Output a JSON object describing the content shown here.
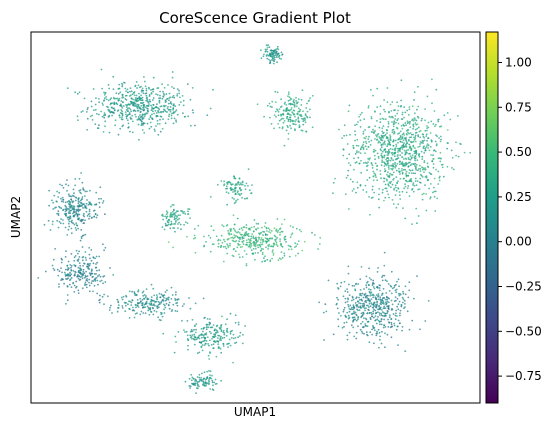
{
  "chart_data": {
    "type": "scatter",
    "title": "CoreScence Gradient Plot",
    "xlabel": "UMAP1",
    "ylabel": "UMAP2",
    "x_ticks": [],
    "y_ticks": [],
    "colorbar": {
      "colormap": "viridis",
      "range": [
        -0.9,
        1.17
      ],
      "ticks": [
        -0.75,
        -0.5,
        -0.25,
        0.0,
        0.25,
        0.5,
        0.75,
        1.0
      ],
      "tick_labels": [
        "−0.75",
        "−0.50",
        "−0.25",
        "0.00",
        "0.25",
        "0.50",
        "0.75",
        "1.00"
      ],
      "colors": [
        "#440154",
        "#482878",
        "#3e4989",
        "#31688e",
        "#26828e",
        "#1f9e89",
        "#35b779",
        "#6ece58",
        "#b5de2b",
        "#fde725"
      ]
    },
    "clusters": [
      {
        "name": "upper-left",
        "x": 0.24,
        "y": 0.8,
        "spread": [
          0.1,
          0.06
        ],
        "value": 0.22
      },
      {
        "name": "top-small",
        "x": 0.54,
        "y": 0.94,
        "spread": [
          0.02,
          0.02
        ],
        "value": 0.2
      },
      {
        "name": "right-large",
        "x": 0.82,
        "y": 0.68,
        "spread": [
          0.1,
          0.12
        ],
        "value": 0.35
      },
      {
        "name": "left-mid",
        "x": 0.1,
        "y": 0.52,
        "spread": [
          0.05,
          0.06
        ],
        "value": 0.05
      },
      {
        "name": "left-lower",
        "x": 0.11,
        "y": 0.35,
        "spread": [
          0.05,
          0.05
        ],
        "value": 0.0
      },
      {
        "name": "center",
        "x": 0.5,
        "y": 0.44,
        "spread": [
          0.1,
          0.04
        ],
        "value": 0.45
      },
      {
        "name": "center-upper",
        "x": 0.46,
        "y": 0.58,
        "spread": [
          0.03,
          0.03
        ],
        "value": 0.3
      },
      {
        "name": "mid-left-small",
        "x": 0.32,
        "y": 0.5,
        "spread": [
          0.03,
          0.03
        ],
        "value": 0.3
      },
      {
        "name": "right-lower",
        "x": 0.76,
        "y": 0.26,
        "spread": [
          0.07,
          0.08
        ],
        "value": 0.05
      },
      {
        "name": "bottom-middle",
        "x": 0.4,
        "y": 0.18,
        "spread": [
          0.06,
          0.04
        ],
        "value": 0.25
      },
      {
        "name": "bottom-tail",
        "x": 0.26,
        "y": 0.27,
        "spread": [
          0.08,
          0.03
        ],
        "value": 0.1
      },
      {
        "name": "bottom-small",
        "x": 0.38,
        "y": 0.06,
        "spread": [
          0.03,
          0.02
        ],
        "value": 0.2
      },
      {
        "name": "small-islands",
        "x": 0.58,
        "y": 0.78,
        "spread": [
          0.04,
          0.05
        ],
        "value": 0.35
      }
    ]
  }
}
